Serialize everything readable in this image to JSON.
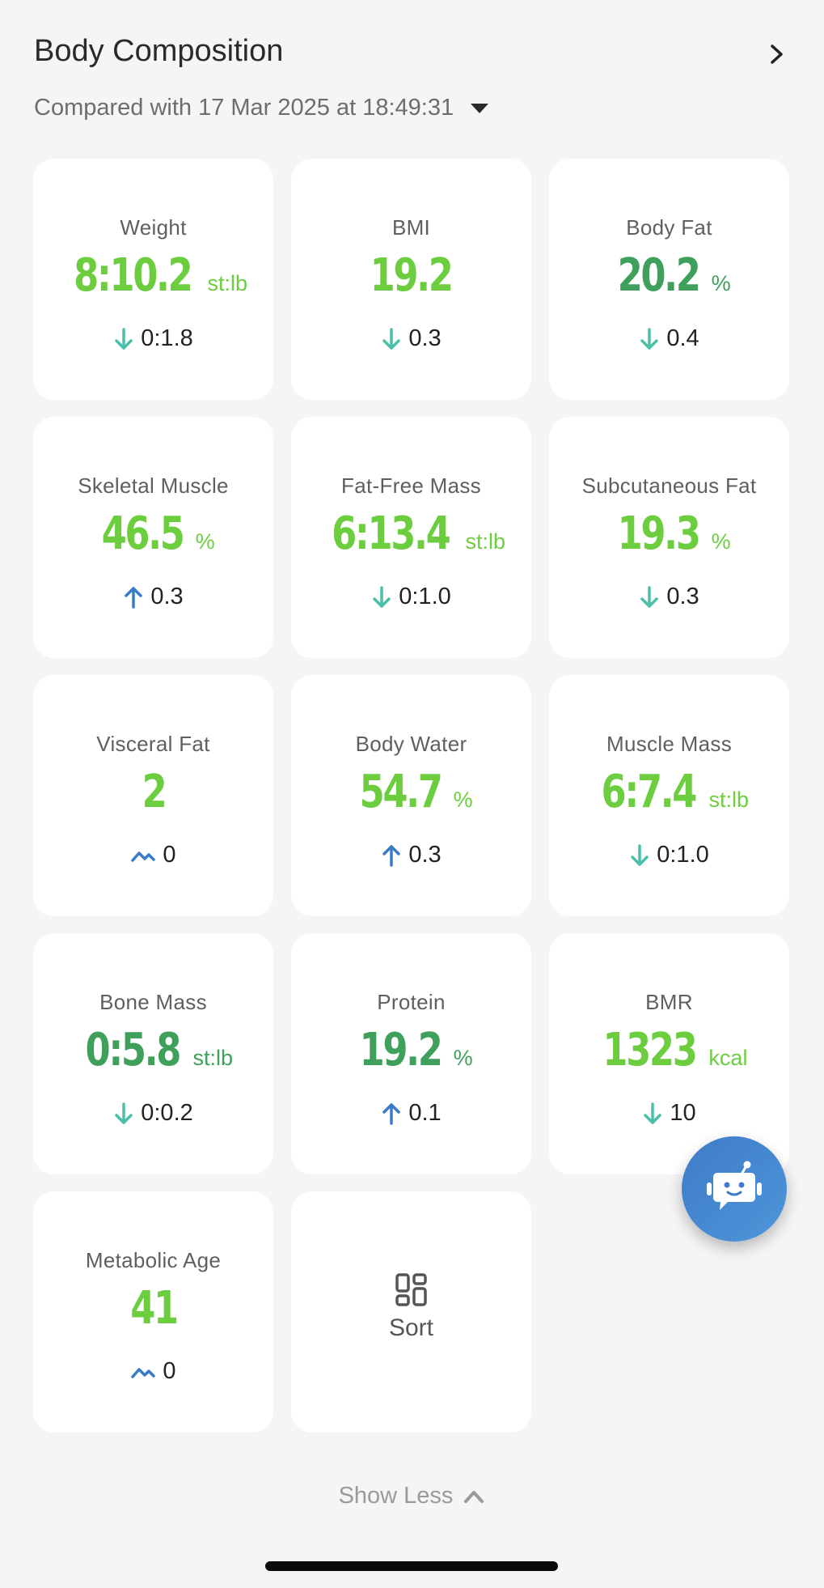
{
  "header": {
    "title": "Body Composition",
    "comparison_text": "Compared with 17 Mar 2025 at 18:49:31"
  },
  "colors": {
    "value_light": "#6ccd3f",
    "value_dark": "#3fa05b",
    "arrow_down": "#4bbfa8",
    "arrow_up": "#3a7bc8",
    "trend_flat": "#3a7bc8"
  },
  "metrics": [
    {
      "label": "Weight",
      "value": "8:10.2",
      "unit": "st:lb",
      "delta": "0:1.8",
      "direction": "down",
      "tone": "light"
    },
    {
      "label": "BMI",
      "value": "19.2",
      "unit": "",
      "delta": "0.3",
      "direction": "down",
      "tone": "light"
    },
    {
      "label": "Body Fat",
      "value": "20.2",
      "unit": "%",
      "delta": "0.4",
      "direction": "down",
      "tone": "dark"
    },
    {
      "label": "Skeletal Muscle",
      "value": "46.5",
      "unit": "%",
      "delta": "0.3",
      "direction": "up",
      "tone": "light"
    },
    {
      "label": "Fat-Free Mass",
      "value": "6:13.4",
      "unit": "st:lb",
      "delta": "0:1.0",
      "direction": "down",
      "tone": "light"
    },
    {
      "label": "Subcutaneous Fat",
      "value": "19.3",
      "unit": "%",
      "delta": "0.3",
      "direction": "down",
      "tone": "light"
    },
    {
      "label": "Visceral Fat",
      "value": "2",
      "unit": "",
      "delta": "0",
      "direction": "flat",
      "tone": "light"
    },
    {
      "label": "Body Water",
      "value": "54.7",
      "unit": "%",
      "delta": "0.3",
      "direction": "up",
      "tone": "light"
    },
    {
      "label": "Muscle Mass",
      "value": "6:7.4",
      "unit": "st:lb",
      "delta": "0:1.0",
      "direction": "down",
      "tone": "light"
    },
    {
      "label": "Bone Mass",
      "value": "0:5.8",
      "unit": "st:lb",
      "delta": "0:0.2",
      "direction": "down",
      "tone": "dark"
    },
    {
      "label": "Protein",
      "value": "19.2",
      "unit": "%",
      "delta": "0.1",
      "direction": "up",
      "tone": "dark"
    },
    {
      "label": "BMR",
      "value": "1323",
      "unit": "kcal",
      "delta": "10",
      "direction": "down",
      "tone": "light"
    },
    {
      "label": "Metabolic Age",
      "value": "41",
      "unit": "",
      "delta": "0",
      "direction": "flat",
      "tone": "light"
    }
  ],
  "sort": {
    "label": "Sort",
    "icon": "grid-sort-icon"
  },
  "footer": {
    "show_less_label": "Show Less"
  },
  "fab": {
    "icon": "robot-assistant-icon"
  }
}
